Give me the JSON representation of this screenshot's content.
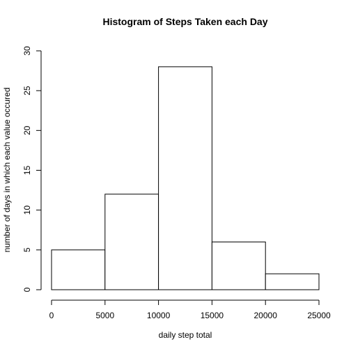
{
  "chart_data": {
    "type": "bar",
    "title": "Histogram of Steps Taken each Day",
    "xlabel": "daily step total",
    "ylabel": "number of days in which each value occured",
    "bins": [
      {
        "start": 0,
        "end": 5000,
        "count": 5
      },
      {
        "start": 5000,
        "end": 10000,
        "count": 12
      },
      {
        "start": 10000,
        "end": 15000,
        "count": 28
      },
      {
        "start": 15000,
        "end": 20000,
        "count": 6
      },
      {
        "start": 20000,
        "end": 25000,
        "count": 2
      }
    ],
    "xlim": [
      0,
      25000
    ],
    "ylim": [
      0,
      30
    ],
    "x_ticks": [
      0,
      5000,
      10000,
      15000,
      20000,
      25000
    ],
    "y_ticks": [
      0,
      5,
      10,
      15,
      20,
      25,
      30
    ],
    "grid": false,
    "bar_fill": "#ffffff",
    "bar_stroke": "#000000"
  }
}
